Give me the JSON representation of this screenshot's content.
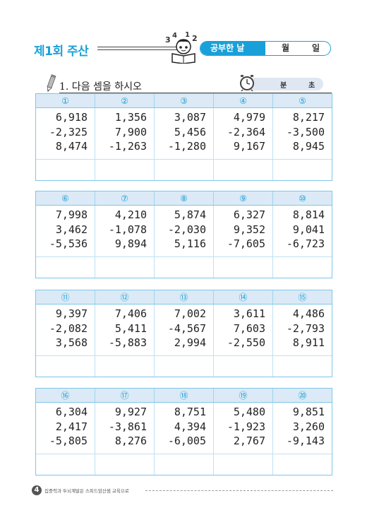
{
  "header": {
    "title": "제1회 주산",
    "date_label": "공부한 날",
    "month_label": "월",
    "day_label": "일"
  },
  "instruction": {
    "text": "1. 다음 셈을 하시오",
    "minute_label": "분",
    "second_label": "초"
  },
  "blocks": [
    {
      "problems": [
        {
          "label": "①",
          "numbers": [
            "6,918",
            "-2,325",
            "8,474"
          ]
        },
        {
          "label": "②",
          "numbers": [
            "1,356",
            "7,900",
            "-1,263"
          ]
        },
        {
          "label": "③",
          "numbers": [
            "3,087",
            "5,456",
            "-1,280"
          ]
        },
        {
          "label": "④",
          "numbers": [
            "4,979",
            "-2,364",
            "9,167"
          ]
        },
        {
          "label": "⑤",
          "numbers": [
            "8,217",
            "-3,500",
            "8,945"
          ]
        }
      ]
    },
    {
      "problems": [
        {
          "label": "⑥",
          "numbers": [
            "7,998",
            "3,462",
            "-5,536"
          ]
        },
        {
          "label": "⑦",
          "numbers": [
            "4,210",
            "-1,078",
            "9,894"
          ]
        },
        {
          "label": "⑧",
          "numbers": [
            "5,874",
            "-2,030",
            "5,116"
          ]
        },
        {
          "label": "⑨",
          "numbers": [
            "6,327",
            "9,352",
            "-7,605"
          ]
        },
        {
          "label": "⑩",
          "numbers": [
            "8,814",
            "9,041",
            "-6,723"
          ]
        }
      ]
    },
    {
      "problems": [
        {
          "label": "⑪",
          "numbers": [
            "9,397",
            "-2,082",
            "3,568"
          ]
        },
        {
          "label": "⑫",
          "numbers": [
            "7,406",
            "5,411",
            "-5,883"
          ]
        },
        {
          "label": "⑬",
          "numbers": [
            "7,002",
            "-4,567",
            "2,994"
          ]
        },
        {
          "label": "⑭",
          "numbers": [
            "3,611",
            "7,603",
            "-2,550"
          ]
        },
        {
          "label": "⑮",
          "numbers": [
            "4,486",
            "-2,793",
            "8,911"
          ]
        }
      ]
    },
    {
      "problems": [
        {
          "label": "⑯",
          "numbers": [
            "6,304",
            "2,417",
            "-5,805"
          ]
        },
        {
          "label": "⑰",
          "numbers": [
            "9,927",
            "-3,861",
            "8,276"
          ]
        },
        {
          "label": "⑱",
          "numbers": [
            "8,751",
            "4,394",
            "-6,005"
          ]
        },
        {
          "label": "⑲",
          "numbers": [
            "5,480",
            "-1,923",
            "2,767"
          ]
        },
        {
          "label": "⑳",
          "numbers": [
            "9,851",
            "3,260",
            "-9,143"
          ]
        }
      ]
    }
  ],
  "footer": {
    "page_number": "4",
    "text": "집중력과 두뇌계발은 스피드암산셈 교육으로"
  },
  "colors": {
    "accent": "#1aa0d8",
    "header_fill": "#dbeaf6",
    "grid_line": "#7fc6e8"
  },
  "icons": [
    "mascot-reading-icon",
    "pencil-icon",
    "clock-icon"
  ]
}
